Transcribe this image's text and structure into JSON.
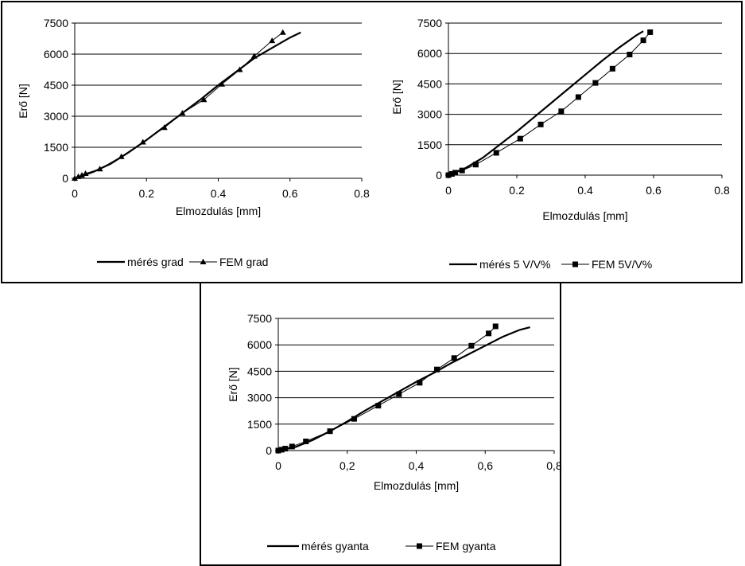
{
  "chart_data": [
    {
      "type": "line",
      "xlabel": "Elmozdulás [mm]",
      "ylabel": "Erő [N]",
      "xlim": [
        0,
        0.8
      ],
      "ylim": [
        0,
        7500
      ],
      "xticks": [
        "0",
        "0.2",
        "0.4",
        "0.6",
        "0.8"
      ],
      "yticks": [
        "0",
        "1500",
        "3000",
        "4500",
        "6000",
        "7500"
      ],
      "grid": "horizontal",
      "legend_position": "bottom",
      "series": [
        {
          "name": "mérés grad",
          "marker": "none",
          "x": [
            0,
            0.05,
            0.1,
            0.15,
            0.2,
            0.25,
            0.3,
            0.35,
            0.4,
            0.45,
            0.5,
            0.55,
            0.6,
            0.63
          ],
          "y": [
            0,
            300,
            700,
            1250,
            1850,
            2500,
            3150,
            3800,
            4500,
            5150,
            5800,
            6300,
            6800,
            7050
          ]
        },
        {
          "name": "FEM grad",
          "marker": "triangle",
          "x": [
            0,
            0.01,
            0.02,
            0.03,
            0.07,
            0.13,
            0.19,
            0.25,
            0.3,
            0.36,
            0.41,
            0.46,
            0.5,
            0.55,
            0.58
          ],
          "y": [
            0,
            80,
            150,
            230,
            450,
            1050,
            1750,
            2450,
            3150,
            3800,
            4550,
            5250,
            5900,
            6650,
            7050
          ]
        }
      ]
    },
    {
      "type": "line",
      "xlabel": "Elmozdulás  [mm]",
      "ylabel": "Erő [N]",
      "xlim": [
        0,
        0.8
      ],
      "ylim": [
        0,
        7500
      ],
      "xticks": [
        "0",
        "0.2",
        "0.4",
        "0.6",
        "0.8"
      ],
      "yticks": [
        "0",
        "1500",
        "3000",
        "4500",
        "6000",
        "7500"
      ],
      "grid": "horizontal",
      "legend_position": "bottom",
      "series": [
        {
          "name": "mérés 5 V/V%",
          "marker": "none",
          "x": [
            0,
            0.05,
            0.1,
            0.15,
            0.2,
            0.25,
            0.3,
            0.35,
            0.4,
            0.45,
            0.5,
            0.55,
            0.57
          ],
          "y": [
            0,
            350,
            850,
            1500,
            2150,
            2850,
            3550,
            4250,
            4950,
            5650,
            6300,
            6900,
            7100
          ]
        },
        {
          "name": "FEM 5V/V%",
          "marker": "square",
          "x": [
            0,
            0.01,
            0.02,
            0.04,
            0.08,
            0.14,
            0.21,
            0.27,
            0.33,
            0.38,
            0.43,
            0.48,
            0.53,
            0.57,
            0.59
          ],
          "y": [
            0,
            60,
            120,
            230,
            520,
            1100,
            1800,
            2500,
            3150,
            3850,
            4550,
            5250,
            5950,
            6650,
            7050
          ]
        }
      ]
    },
    {
      "type": "line",
      "xlabel": "Elmozdulás  [mm]",
      "ylabel": "Erő [N]",
      "xlim": [
        0,
        0.8
      ],
      "ylim": [
        0,
        7500
      ],
      "xticks": [
        "0",
        "0,2",
        "0,4",
        "0,6",
        "0,8"
      ],
      "yticks": [
        "0",
        "1500",
        "3000",
        "4500",
        "6000",
        "7500"
      ],
      "grid": "horizontal",
      "legend_position": "bottom",
      "series": [
        {
          "name": "mérés gyanta",
          "marker": "none",
          "x": [
            0,
            0.05,
            0.1,
            0.15,
            0.2,
            0.25,
            0.3,
            0.35,
            0.4,
            0.45,
            0.5,
            0.55,
            0.6,
            0.65,
            0.7,
            0.73
          ],
          "y": [
            0,
            200,
            600,
            1100,
            1650,
            2250,
            2800,
            3350,
            3900,
            4400,
            4950,
            5450,
            5950,
            6450,
            6850,
            7000
          ]
        },
        {
          "name": "FEM gyanta",
          "marker": "square",
          "x": [
            0,
            0.01,
            0.02,
            0.04,
            0.08,
            0.15,
            0.22,
            0.29,
            0.35,
            0.41,
            0.46,
            0.51,
            0.56,
            0.61,
            0.63
          ],
          "y": [
            0,
            50,
            110,
            230,
            520,
            1100,
            1800,
            2550,
            3200,
            3850,
            4600,
            5250,
            5950,
            6650,
            7050
          ]
        }
      ]
    }
  ]
}
